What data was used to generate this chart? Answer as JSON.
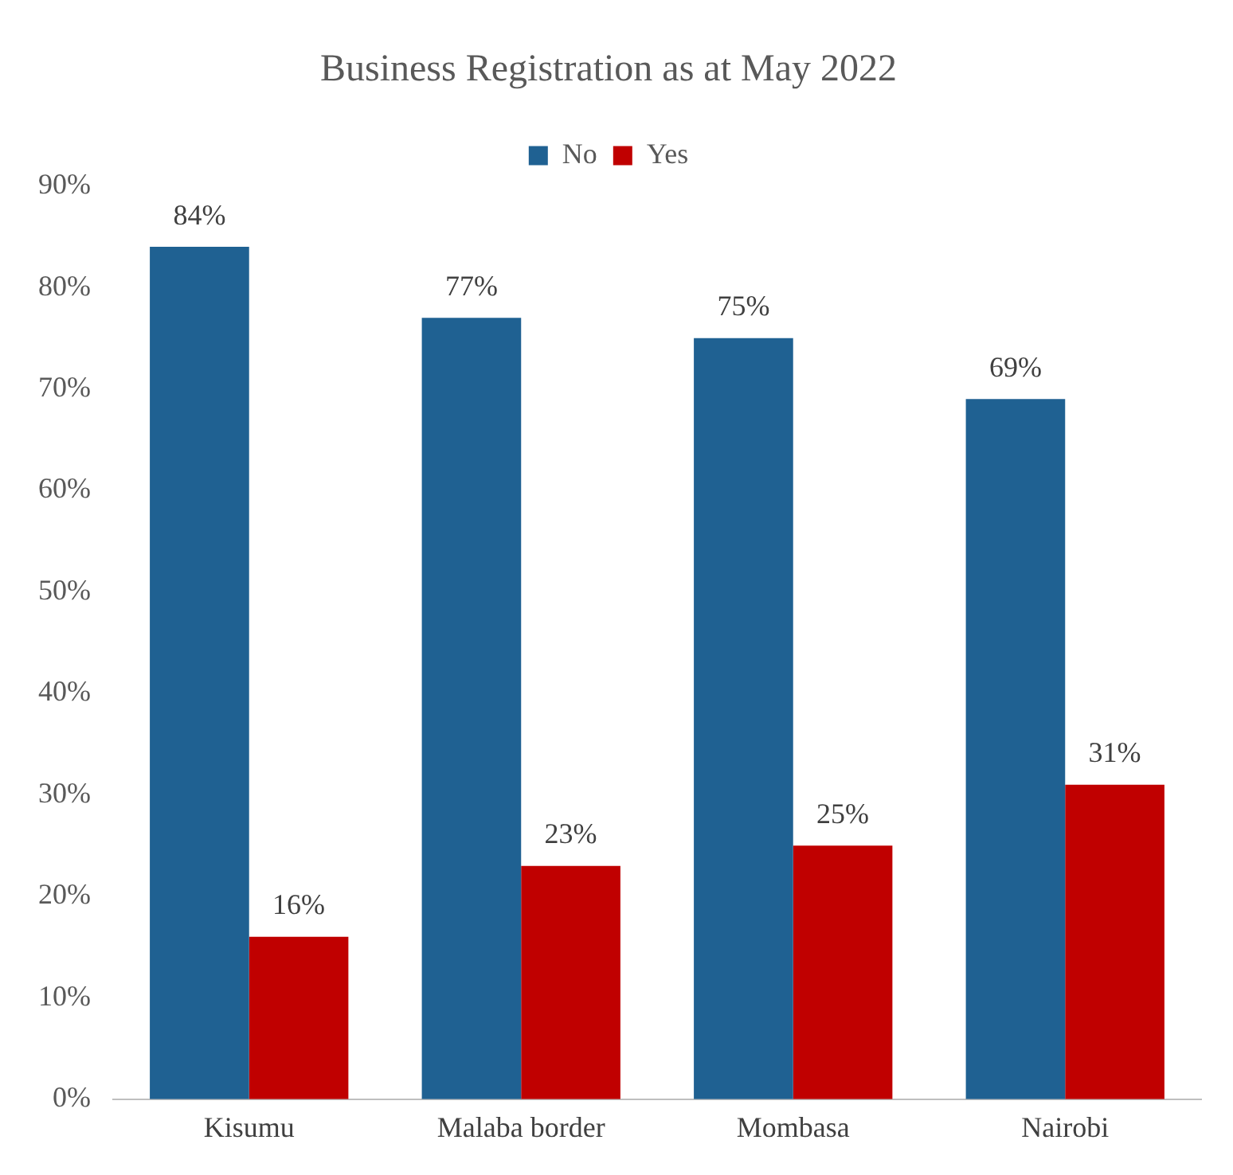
{
  "chart_data": {
    "type": "bar",
    "title": "Business Registration as at May 2022",
    "categories": [
      "Kisumu",
      "Malaba border",
      "Mombasa",
      "Nairobi"
    ],
    "series": [
      {
        "name": "No",
        "color": "#1f6192",
        "values": [
          84,
          77,
          75,
          69
        ],
        "value_labels": [
          "84%",
          "77%",
          "75%",
          "69%"
        ]
      },
      {
        "name": "Yes",
        "color": "#c00000",
        "values": [
          16,
          23,
          25,
          31
        ],
        "value_labels": [
          "16%",
          "23%",
          "25%",
          "31%"
        ]
      }
    ],
    "ylim": [
      0,
      90
    ],
    "yticks": [
      {
        "value": 0,
        "label": "0%"
      },
      {
        "value": 10,
        "label": "10%"
      },
      {
        "value": 20,
        "label": "20%"
      },
      {
        "value": 30,
        "label": "30%"
      },
      {
        "value": 40,
        "label": "40%"
      },
      {
        "value": 50,
        "label": "50%"
      },
      {
        "value": 60,
        "label": "60%"
      },
      {
        "value": 70,
        "label": "70%"
      },
      {
        "value": 80,
        "label": "80%"
      },
      {
        "value": 90,
        "label": "90%"
      }
    ],
    "grid": false,
    "legend": "top"
  }
}
